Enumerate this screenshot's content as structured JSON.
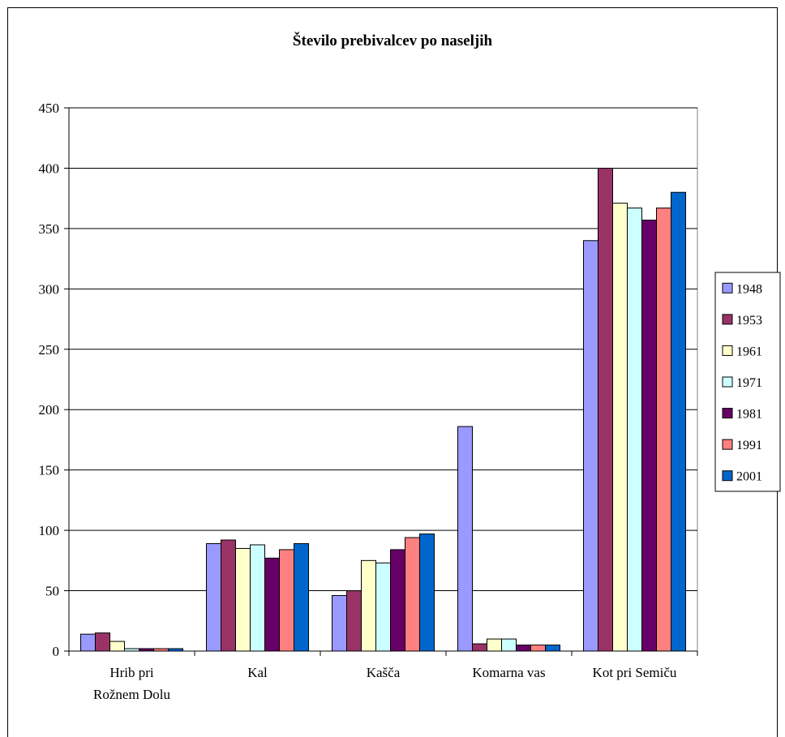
{
  "chart_data": {
    "type": "bar",
    "title": "Število prebivalcev po naseljih",
    "xlabel": "",
    "ylabel": "",
    "ylim": [
      0,
      450
    ],
    "yticks": [
      0,
      50,
      100,
      150,
      200,
      250,
      300,
      350,
      400,
      450
    ],
    "grid": true,
    "legend_position": "right",
    "categories": [
      [
        "Hrib pri",
        "Rožnem Dolu"
      ],
      [
        "Kal"
      ],
      [
        "Kašča"
      ],
      [
        "Komarna vas"
      ],
      [
        "Kot pri Semiču"
      ]
    ],
    "series": [
      {
        "name": "1948",
        "color": "#9999ff",
        "values": [
          14,
          89,
          46,
          186,
          340
        ]
      },
      {
        "name": "1953",
        "color": "#993366",
        "values": [
          15,
          92,
          50,
          6,
          400
        ]
      },
      {
        "name": "1961",
        "color": "#ffffcc",
        "values": [
          8,
          85,
          75,
          10,
          371
        ]
      },
      {
        "name": "1971",
        "color": "#ccffff",
        "values": [
          2,
          88,
          73,
          10,
          367
        ]
      },
      {
        "name": "1981",
        "color": "#660066",
        "values": [
          2,
          77,
          84,
          5,
          357
        ]
      },
      {
        "name": "1991",
        "color": "#ff8080",
        "values": [
          2,
          84,
          94,
          5,
          367
        ]
      },
      {
        "name": "2001",
        "color": "#0066cc",
        "values": [
          2,
          89,
          97,
          5,
          380
        ]
      }
    ]
  }
}
